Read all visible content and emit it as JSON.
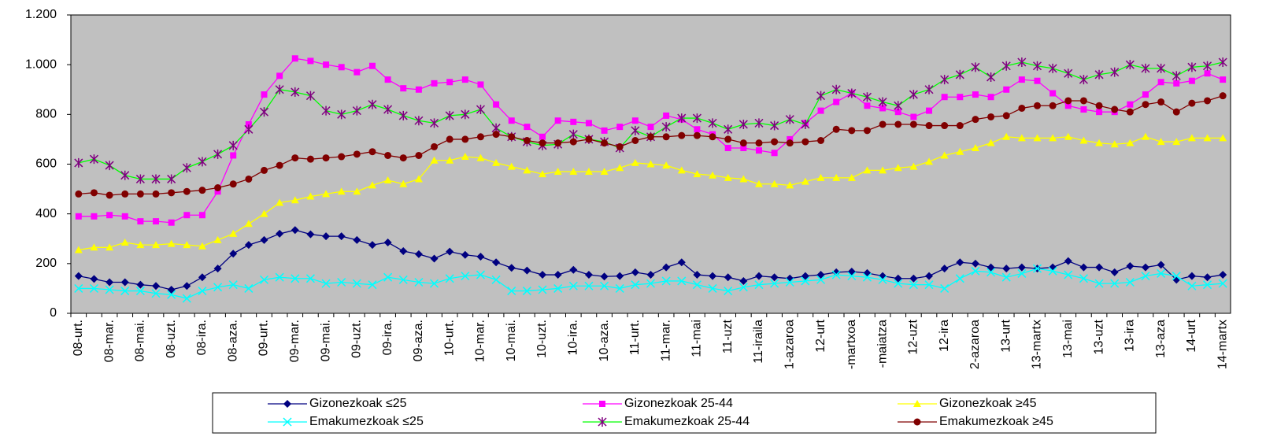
{
  "chart_data": {
    "type": "line",
    "categories": [
      "08-urt.",
      null,
      "08-mar.",
      null,
      "08-mai.",
      null,
      "08-uzt.",
      null,
      "08-ira.",
      null,
      "08-aza.",
      null,
      "09-urt.",
      null,
      "09-mar.",
      null,
      "09-mai.",
      null,
      "09-uzt.",
      null,
      "09-ira.",
      null,
      "09-aza.",
      null,
      "10-urt.",
      null,
      "10-mar.",
      null,
      "10-mai.",
      null,
      "10-uzt.",
      null,
      "10-ira.",
      null,
      "10-aza.",
      null,
      "11-urt.",
      null,
      "11-mar.",
      null,
      "11-mai",
      null,
      "11-uzt",
      null,
      "11-iraila",
      null,
      "1-azaroa",
      null,
      "12-urt",
      null,
      "-martxoa",
      null,
      "-maiatza",
      null,
      "12-uzt",
      null,
      "12-ira",
      null,
      "2-azaroa",
      null,
      "13-urt",
      null,
      "13-martx",
      null,
      "13-mai",
      null,
      "13-uzt",
      null,
      "13-ira",
      null,
      "13-aza",
      null,
      "14-urt",
      null,
      "14-martx"
    ],
    "series": [
      {
        "name": "Gizonezkoak ≤25",
        "color": "#000080",
        "marker": "diamond",
        "marker_color": "#000080",
        "values": [
          150,
          138,
          125,
          125,
          115,
          110,
          95,
          110,
          145,
          180,
          240,
          275,
          295,
          320,
          335,
          318,
          310,
          310,
          295,
          275,
          285,
          250,
          238,
          220,
          248,
          235,
          228,
          205,
          183,
          172,
          155,
          155,
          175,
          155,
          148,
          150,
          165,
          155,
          185,
          205,
          155,
          150,
          145,
          130,
          150,
          145,
          140,
          150,
          155,
          165,
          168,
          162,
          150,
          140,
          140,
          150,
          180,
          205,
          200,
          185,
          180,
          185,
          180,
          185,
          210,
          185,
          185,
          165,
          190,
          185,
          195,
          135,
          150,
          145,
          155
        ]
      },
      {
        "name": "Gizonezkoak 25-44",
        "color": "#ff00ff",
        "marker": "square",
        "marker_color": "#ff00ff",
        "values": [
          390,
          390,
          395,
          390,
          370,
          370,
          365,
          395,
          395,
          490,
          635,
          760,
          880,
          955,
          1025,
          1015,
          1000,
          990,
          970,
          995,
          940,
          905,
          900,
          925,
          930,
          940,
          920,
          840,
          775,
          750,
          710,
          775,
          770,
          765,
          735,
          750,
          775,
          750,
          795,
          780,
          740,
          720,
          665,
          665,
          655,
          645,
          700,
          765,
          815,
          850,
          885,
          835,
          825,
          810,
          790,
          815,
          870,
          870,
          880,
          870,
          900,
          940,
          935,
          885,
          835,
          820,
          810,
          810,
          840,
          880,
          930,
          925,
          935,
          965,
          940
        ]
      },
      {
        "name": "Gizonezkoak ≥45",
        "color": "#ffff00",
        "marker": "triangle",
        "marker_color": "#ffff00",
        "values": [
          255,
          265,
          265,
          285,
          275,
          275,
          280,
          275,
          270,
          295,
          320,
          360,
          400,
          445,
          455,
          470,
          480,
          490,
          490,
          515,
          535,
          520,
          540,
          615,
          615,
          630,
          625,
          605,
          590,
          575,
          560,
          570,
          570,
          570,
          570,
          585,
          605,
          600,
          595,
          575,
          560,
          555,
          545,
          540,
          520,
          520,
          515,
          530,
          545,
          545,
          545,
          575,
          575,
          585,
          590,
          610,
          635,
          650,
          665,
          685,
          710,
          705,
          705,
          705,
          710,
          695,
          685,
          680,
          685,
          710,
          690,
          690,
          705,
          705,
          705
        ]
      },
      {
        "name": "Emakumezkoak ≤25",
        "color": "#00ffff",
        "marker": "x",
        "marker_color": "#00ffff",
        "values": [
          100,
          100,
          95,
          90,
          90,
          80,
          75,
          60,
          90,
          105,
          115,
          100,
          135,
          145,
          140,
          140,
          120,
          125,
          120,
          115,
          145,
          135,
          125,
          120,
          140,
          150,
          155,
          135,
          90,
          90,
          95,
          100,
          110,
          110,
          110,
          100,
          115,
          120,
          130,
          130,
          115,
          100,
          90,
          105,
          115,
          120,
          125,
          130,
          135,
          155,
          150,
          145,
          135,
          120,
          115,
          115,
          100,
          140,
          170,
          165,
          145,
          160,
          180,
          170,
          155,
          140,
          120,
          120,
          125,
          150,
          160,
          150,
          110,
          115,
          120
        ]
      },
      {
        "name": "Emakumezkoak 25-44",
        "color": "#00ff00",
        "marker": "star",
        "marker_color": "#800080",
        "values": [
          605,
          620,
          595,
          555,
          540,
          540,
          540,
          585,
          610,
          640,
          675,
          740,
          810,
          900,
          890,
          875,
          815,
          800,
          815,
          840,
          820,
          795,
          775,
          765,
          795,
          800,
          820,
          745,
          710,
          690,
          675,
          680,
          720,
          700,
          690,
          665,
          735,
          710,
          750,
          785,
          785,
          765,
          740,
          760,
          765,
          755,
          780,
          760,
          875,
          900,
          885,
          870,
          850,
          835,
          880,
          900,
          940,
          960,
          990,
          950,
          995,
          1010,
          995,
          985,
          965,
          940,
          960,
          970,
          1000,
          985,
          985,
          955,
          990,
          995,
          1010
        ]
      },
      {
        "name": "Emakumezkoak ≥45",
        "color": "#800000",
        "marker": "circle",
        "marker_color": "#800000",
        "values": [
          480,
          485,
          475,
          480,
          480,
          480,
          485,
          490,
          495,
          505,
          520,
          540,
          575,
          595,
          625,
          620,
          625,
          630,
          640,
          650,
          635,
          625,
          635,
          670,
          700,
          700,
          710,
          720,
          710,
          695,
          685,
          685,
          690,
          700,
          685,
          670,
          695,
          710,
          710,
          715,
          715,
          710,
          700,
          685,
          685,
          690,
          685,
          690,
          695,
          740,
          735,
          735,
          760,
          760,
          760,
          755,
          755,
          755,
          780,
          790,
          795,
          825,
          835,
          835,
          855,
          855,
          835,
          820,
          810,
          840,
          850,
          810,
          845,
          855,
          875
        ]
      }
    ],
    "ylim": [
      0,
      1200
    ],
    "yticks": [
      0,
      200,
      400,
      600,
      800,
      {
        "value": 1000,
        "label": "1.000"
      },
      {
        "value": 1200,
        "label": "1.200"
      }
    ],
    "plot_background": "#c0c0c0",
    "legend": "bottom"
  }
}
